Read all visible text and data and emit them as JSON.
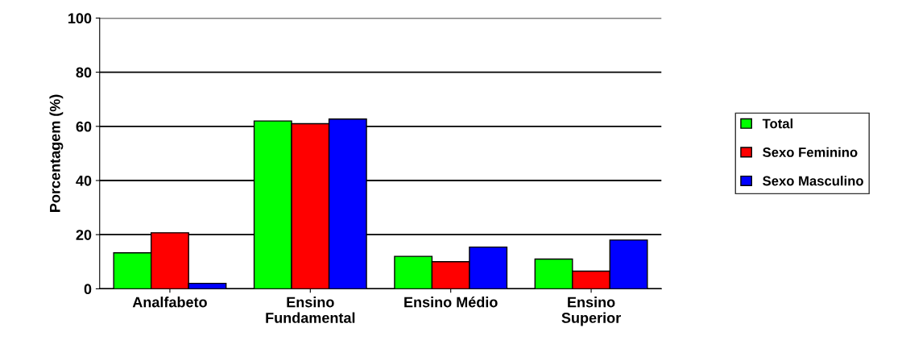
{
  "chart_data": {
    "type": "bar",
    "ylabel": "Porcentagem (%)",
    "categories": [
      "Analfabeto",
      "Ensino\nFundamental",
      "Ensino Médio",
      "Ensino\nSuperior"
    ],
    "series": [
      {
        "name": "Total",
        "color": "#00ff00",
        "values": [
          13.3,
          62,
          12,
          11
        ]
      },
      {
        "name": "Sexo Feminino",
        "color": "#ff0000",
        "values": [
          20.7,
          61,
          10,
          6.5
        ]
      },
      {
        "name": "Sexo Masculino",
        "color": "#0000ff",
        "values": [
          2,
          62.7,
          15.4,
          18
        ]
      }
    ],
    "ylim": [
      0,
      100
    ],
    "yticks": [
      0,
      20,
      40,
      60,
      80,
      100
    ],
    "grid": "y",
    "legend": "right"
  }
}
